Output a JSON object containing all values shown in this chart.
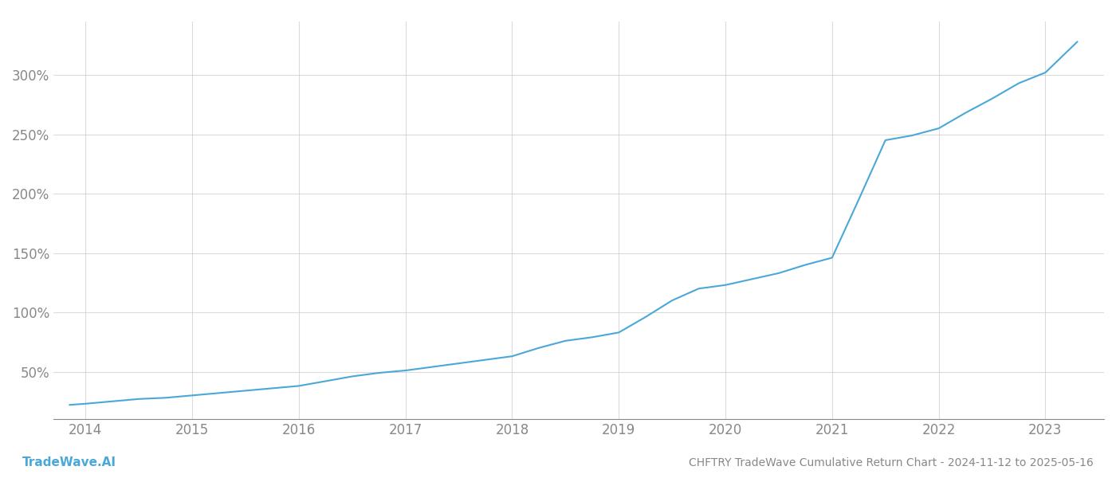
{
  "title": "CHFTRY TradeWave Cumulative Return Chart - 2024-11-12 to 2025-05-16",
  "watermark": "TradeWave.AI",
  "line_color": "#4aa8d8",
  "background_color": "#ffffff",
  "grid_color": "#cccccc",
  "x_years": [
    2014,
    2015,
    2016,
    2017,
    2018,
    2019,
    2020,
    2021,
    2022,
    2023
  ],
  "x_data": [
    2013.85,
    2014.0,
    2014.25,
    2014.5,
    2014.75,
    2015.0,
    2015.25,
    2015.5,
    2015.75,
    2016.0,
    2016.25,
    2016.5,
    2016.75,
    2017.0,
    2017.25,
    2017.5,
    2017.75,
    2018.0,
    2018.25,
    2018.5,
    2018.75,
    2019.0,
    2019.25,
    2019.5,
    2019.75,
    2020.0,
    2020.25,
    2020.5,
    2020.75,
    2021.0,
    2021.25,
    2021.5,
    2021.75,
    2022.0,
    2022.25,
    2022.5,
    2022.75,
    2023.0,
    2023.3
  ],
  "y_data": [
    22,
    23,
    25,
    27,
    28,
    30,
    32,
    34,
    36,
    38,
    42,
    46,
    49,
    51,
    54,
    57,
    60,
    63,
    70,
    76,
    79,
    83,
    96,
    110,
    120,
    123,
    128,
    133,
    140,
    146,
    195,
    245,
    249,
    255,
    268,
    280,
    293,
    302,
    328
  ],
  "yticks": [
    50,
    100,
    150,
    200,
    250,
    300
  ],
  "ylim": [
    10,
    345
  ],
  "xlim": [
    2013.7,
    2023.55
  ],
  "title_fontsize": 10,
  "tick_fontsize": 12,
  "watermark_fontsize": 11,
  "axis_color": "#888888",
  "tick_color": "#888888"
}
